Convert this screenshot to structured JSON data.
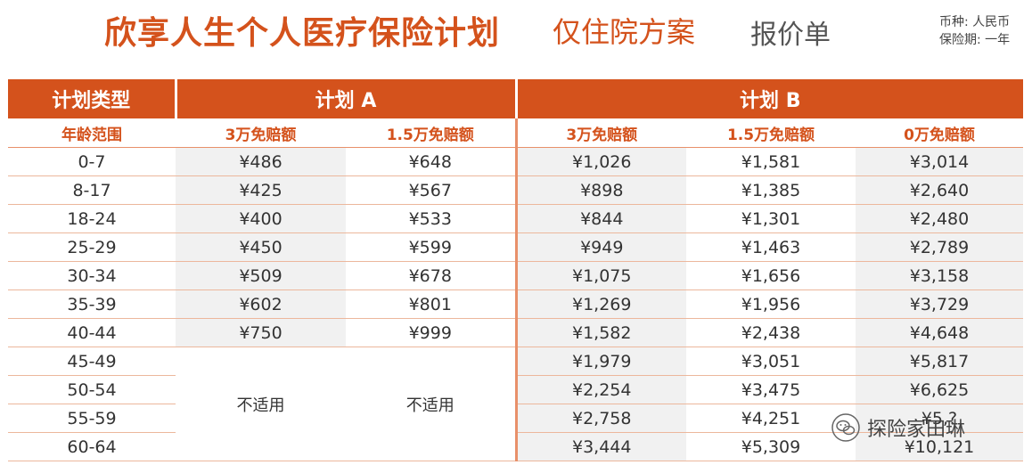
{
  "header": {
    "title_main": "欣享人生个人医疗保险计划",
    "title_sub": "仅住院方案",
    "title_quote": "报价单",
    "currency": "币种: 人民币",
    "period": "保险期: 一年"
  },
  "table": {
    "plan_type_label": "计划类型",
    "age_range_label": "年龄范围",
    "plan_a_label": "计划 A",
    "plan_b_label": "计划 B",
    "sub_headers": [
      "3万免赔额",
      "1.5万免赔额",
      "3万免赔额",
      "1.5万免赔额",
      "0万免赔额"
    ],
    "not_applicable": "不适用",
    "rows": [
      {
        "age": "0-7",
        "a": [
          "¥486",
          "¥648"
        ],
        "b": [
          "¥1,026",
          "¥1,581",
          "¥3,014"
        ]
      },
      {
        "age": "8-17",
        "a": [
          "¥425",
          "¥567"
        ],
        "b": [
          "¥898",
          "¥1,385",
          "¥2,640"
        ]
      },
      {
        "age": "18-24",
        "a": [
          "¥400",
          "¥533"
        ],
        "b": [
          "¥844",
          "¥1,301",
          "¥2,480"
        ]
      },
      {
        "age": "25-29",
        "a": [
          "¥450",
          "¥599"
        ],
        "b": [
          "¥949",
          "¥1,463",
          "¥2,789"
        ]
      },
      {
        "age": "30-34",
        "a": [
          "¥509",
          "¥678"
        ],
        "b": [
          "¥1,075",
          "¥1,656",
          "¥3,158"
        ]
      },
      {
        "age": "35-39",
        "a": [
          "¥602",
          "¥801"
        ],
        "b": [
          "¥1,269",
          "¥1,956",
          "¥3,729"
        ]
      },
      {
        "age": "40-44",
        "a": [
          "¥750",
          "¥999"
        ],
        "b": [
          "¥1,582",
          "¥2,438",
          "¥4,648"
        ]
      },
      {
        "age": "45-49",
        "a": null,
        "b": [
          "¥1,979",
          "¥3,051",
          "¥5,817"
        ]
      },
      {
        "age": "50-54",
        "a": null,
        "b": [
          "¥2,254",
          "¥3,475",
          "¥6,625"
        ]
      },
      {
        "age": "55-59",
        "a": null,
        "b": [
          "¥2,758",
          "¥4,251",
          "¥5,?"
        ]
      },
      {
        "age": "60-64",
        "a": null,
        "b": [
          "¥3,444",
          "¥5,309",
          "¥10,121"
        ]
      }
    ]
  },
  "watermark": {
    "text": "探险家田琳",
    "icon": "wechat-icon"
  },
  "colors": {
    "accent": "#d4521c",
    "header_bg": "#d4521c",
    "shade": "#f1f1f1",
    "divider": "#e8906a"
  }
}
